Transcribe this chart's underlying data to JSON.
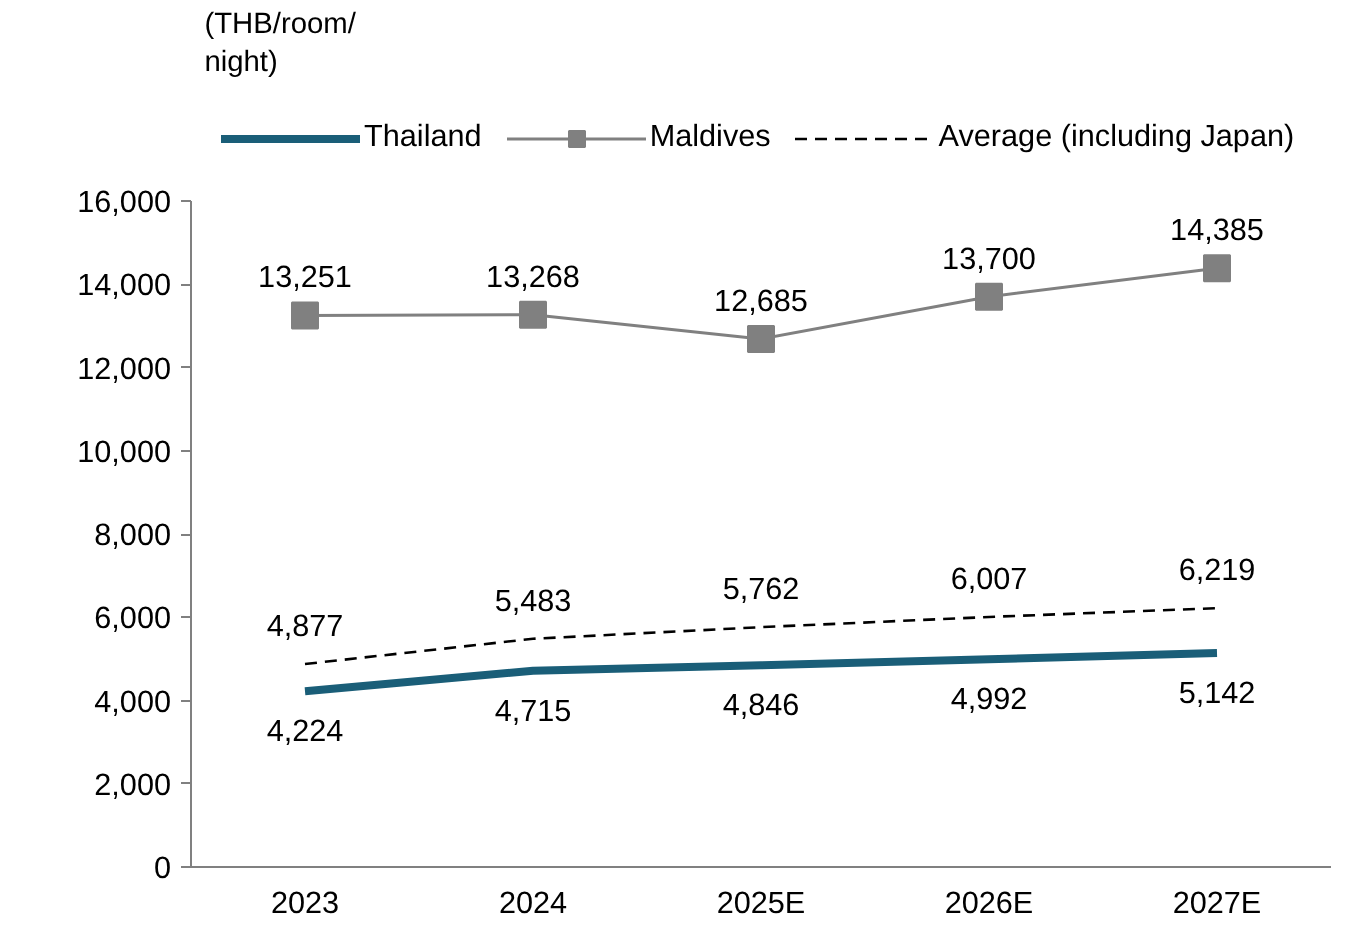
{
  "chart_data": {
    "type": "line",
    "ylabel": "(THB/room/night)",
    "categories": [
      "2023",
      "2024",
      "2025E",
      "2026E",
      "2027E"
    ],
    "series": [
      {
        "name": "Thailand",
        "color": "#1a5e78",
        "values": [
          4224,
          4715,
          4846,
          4992,
          5142
        ],
        "value_labels": [
          "4,224",
          "4,715",
          "4,846",
          "4,992",
          "5,142"
        ],
        "line_style": "solid",
        "marker": "none"
      },
      {
        "name": "Maldives",
        "color": "#808080",
        "values": [
          13251,
          13268,
          12685,
          13700,
          14385
        ],
        "value_labels": [
          "13,251",
          "13,268",
          "12,685",
          "13,700",
          "14,385"
        ],
        "line_style": "solid",
        "marker": "square"
      },
      {
        "name": "Average (including Japan)",
        "color": "#000000",
        "values": [
          4877,
          5483,
          5762,
          6007,
          6219
        ],
        "value_labels": [
          "4,877",
          "5,483",
          "5,762",
          "6,007",
          "6,219"
        ],
        "line_style": "dashed",
        "marker": "none"
      }
    ],
    "ylim": [
      0,
      16000
    ],
    "yticks": [
      0,
      {
        "value": 2000,
        "label": "2,000"
      },
      {
        "value": 4000,
        "label": "4,000"
      },
      {
        "value": 6000,
        "label": "6,000"
      },
      {
        "value": 8000,
        "label": "8,000"
      },
      {
        "value": 10000,
        "label": "10,000"
      },
      {
        "value": 12000,
        "label": "12,000"
      },
      {
        "value": 14000,
        "label": "14,000"
      },
      {
        "value": 16000,
        "label": "16,000"
      }
    ],
    "grid": false,
    "legend": "top"
  }
}
